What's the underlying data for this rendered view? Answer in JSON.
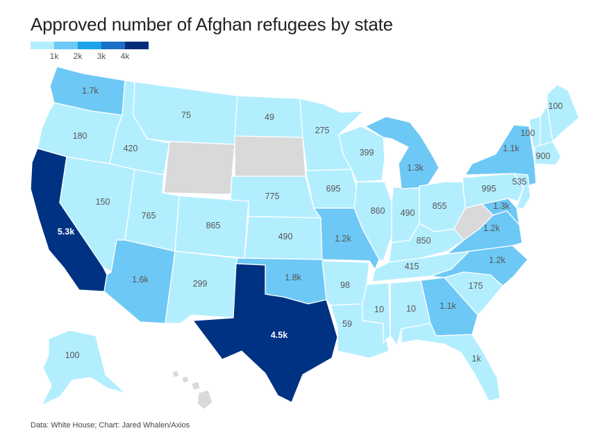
{
  "title": "Approved number of Afghan refugees by state",
  "source": "Data: White House; Chart: Jared Whalen/Axios",
  "legend": {
    "colors": [
      "#b3eeff",
      "#6dc8f5",
      "#1ca3e8",
      "#1a6fc7",
      "#052c7a"
    ],
    "ticks": [
      "1k",
      "2k",
      "3k",
      "4k"
    ]
  },
  "colors": {
    "nodata": "#d9d9d9",
    "light": "#b3eeff",
    "mid": "#6dc8f5",
    "dark": "#003283"
  },
  "states": {
    "WA": "1.7k",
    "OR": "180",
    "CA": "5.3k",
    "NV": "150",
    "ID": "420",
    "MT": "75",
    "UT": "765",
    "AZ": "1.6k",
    "CO": "865",
    "NM": "299",
    "ND": "49",
    "NE": "775",
    "KS": "490",
    "OK": "1.8k",
    "TX": "4.5k",
    "MN": "275",
    "IA": "695",
    "MO": "1.2k",
    "AR": "98",
    "LA": "59",
    "WI": "399",
    "IL": "860",
    "MS": "10",
    "MI": "1.3k",
    "IN": "490",
    "KY": "850",
    "TN": "415",
    "AL": "10",
    "OH": "855",
    "GA": "1.1k",
    "FL": "1k",
    "SC": "175",
    "NC": "1.2k",
    "VA": "1.2k",
    "MD": "1.3k",
    "PA": "995",
    "NY": "1.1k",
    "NJ": "535",
    "VT": "100",
    "MA": "900",
    "ME": "100",
    "AK": "100"
  }
}
